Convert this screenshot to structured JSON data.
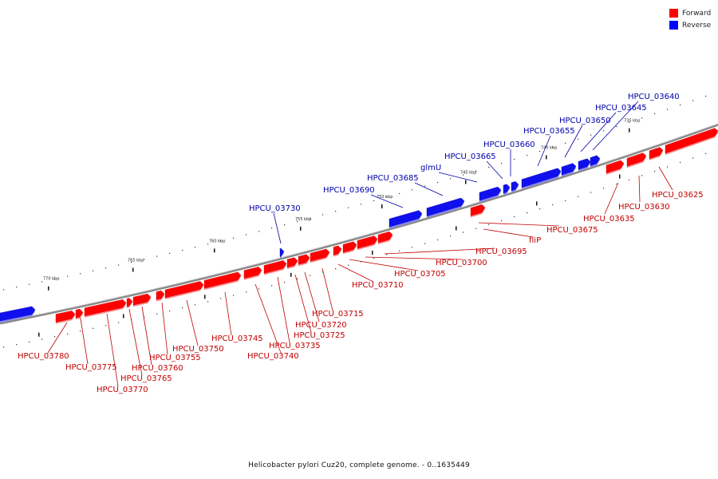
{
  "legend": [
    {
      "label": "Forward",
      "color": "#ff0000"
    },
    {
      "label": "Reverse",
      "color": "#0000ff"
    }
  ],
  "caption": "Helicobacter pylori Cuz20, complete genome. - 0..1635449",
  "colors": {
    "forward": "#ff0000",
    "reverse": "#1010ee",
    "forward_label": "#c00000",
    "reverse_label": "#0000aa",
    "backbone": "#888888"
  },
  "ticks": [
    "735 kbp",
    "740 kbp",
    "745 kbp",
    "750 kbp",
    "755 kbp",
    "760 kbp",
    "765 kbp",
    "770 kbp"
  ],
  "reverse_genes": [
    "HPCU_03640",
    "HPCU_03645",
    "HPCU_03650",
    "HPCU_03655",
    "HPCU_03660",
    "HPCU_03665",
    "glmU",
    "HPCU_03685",
    "HPCU_03690",
    "HPCU_03730"
  ],
  "forward_genes": [
    "HPCU_03625",
    "HPCU_03630",
    "HPCU_03635",
    "HPCU_03675",
    "fliP",
    "HPCU_03695",
    "HPCU_03700",
    "HPCU_03705",
    "HPCU_03710",
    "HPCU_03715",
    "HPCU_03720",
    "HPCU_03725",
    "HPCU_03735",
    "HPCU_03740",
    "HPCU_03745",
    "HPCU_03750",
    "HPCU_03755",
    "HPCU_03760",
    "HPCU_03765",
    "HPCU_03770",
    "HPCU_03775",
    "HPCU_03780"
  ]
}
